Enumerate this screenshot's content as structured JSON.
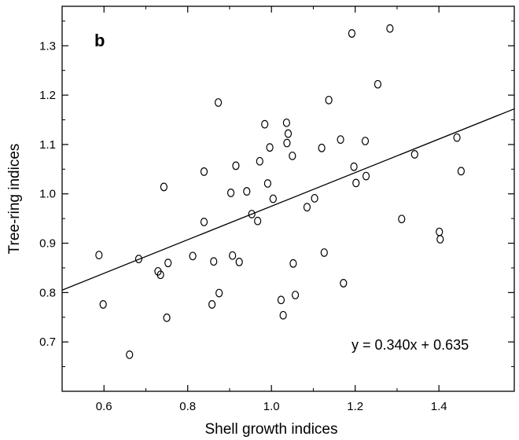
{
  "chart_data": {
    "type": "scatter",
    "panel_label": "b",
    "xlabel": "Shell growth indices",
    "ylabel": "Tree-ring indices",
    "xlim": [
      0.5,
      1.58
    ],
    "ylim": [
      0.6,
      1.38
    ],
    "xticks": [
      0.6,
      0.8,
      1.0,
      1.2,
      1.4
    ],
    "yticks": [
      0.7,
      0.8,
      0.9,
      1.0,
      1.1,
      1.2,
      1.3
    ],
    "xtick_labels": [
      "0.6",
      "0.8",
      "1.0",
      "1.2",
      "1.4"
    ],
    "ytick_labels": [
      "0.7",
      "0.8",
      "0.9",
      "1.0",
      "1.1",
      "1.2",
      "1.3"
    ],
    "grid": false,
    "legend": "none",
    "points": [
      {
        "x": 0.588,
        "y": 0.876
      },
      {
        "x": 0.598,
        "y": 0.776
      },
      {
        "x": 0.661,
        "y": 0.674
      },
      {
        "x": 0.683,
        "y": 0.868
      },
      {
        "x": 0.729,
        "y": 0.843
      },
      {
        "x": 0.735,
        "y": 0.836
      },
      {
        "x": 0.743,
        "y": 1.014
      },
      {
        "x": 0.75,
        "y": 0.749
      },
      {
        "x": 0.753,
        "y": 0.86
      },
      {
        "x": 0.812,
        "y": 0.874
      },
      {
        "x": 0.839,
        "y": 0.943
      },
      {
        "x": 0.839,
        "y": 1.045
      },
      {
        "x": 0.858,
        "y": 0.776
      },
      {
        "x": 0.862,
        "y": 0.863
      },
      {
        "x": 0.873,
        "y": 1.185
      },
      {
        "x": 0.875,
        "y": 0.799
      },
      {
        "x": 0.903,
        "y": 1.002
      },
      {
        "x": 0.907,
        "y": 0.875
      },
      {
        "x": 0.915,
        "y": 1.057
      },
      {
        "x": 0.923,
        "y": 0.862
      },
      {
        "x": 0.941,
        "y": 1.005
      },
      {
        "x": 0.953,
        "y": 0.959
      },
      {
        "x": 0.967,
        "y": 0.945
      },
      {
        "x": 0.972,
        "y": 1.066
      },
      {
        "x": 0.984,
        "y": 1.141
      },
      {
        "x": 0.991,
        "y": 1.021
      },
      {
        "x": 0.996,
        "y": 1.094
      },
      {
        "x": 1.004,
        "y": 0.99
      },
      {
        "x": 1.023,
        "y": 0.785
      },
      {
        "x": 1.028,
        "y": 0.754
      },
      {
        "x": 1.036,
        "y": 1.144
      },
      {
        "x": 1.037,
        "y": 1.103
      },
      {
        "x": 1.04,
        "y": 1.122
      },
      {
        "x": 1.05,
        "y": 1.077
      },
      {
        "x": 1.052,
        "y": 0.859
      },
      {
        "x": 1.057,
        "y": 0.795
      },
      {
        "x": 1.085,
        "y": 0.973
      },
      {
        "x": 1.103,
        "y": 0.991
      },
      {
        "x": 1.12,
        "y": 1.093
      },
      {
        "x": 1.126,
        "y": 0.881
      },
      {
        "x": 1.137,
        "y": 1.19
      },
      {
        "x": 1.165,
        "y": 1.11
      },
      {
        "x": 1.172,
        "y": 0.819
      },
      {
        "x": 1.192,
        "y": 1.325
      },
      {
        "x": 1.197,
        "y": 1.055
      },
      {
        "x": 1.202,
        "y": 1.022
      },
      {
        "x": 1.224,
        "y": 1.107
      },
      {
        "x": 1.226,
        "y": 1.036
      },
      {
        "x": 1.254,
        "y": 1.222
      },
      {
        "x": 1.283,
        "y": 1.335
      },
      {
        "x": 1.311,
        "y": 0.949
      },
      {
        "x": 1.342,
        "y": 1.08
      },
      {
        "x": 1.401,
        "y": 0.923
      },
      {
        "x": 1.403,
        "y": 0.908
      },
      {
        "x": 1.443,
        "y": 1.114
      },
      {
        "x": 1.453,
        "y": 1.046
      }
    ],
    "fit": {
      "slope": 0.34,
      "intercept": 0.635,
      "label": "y = 0.340x + 0.635"
    }
  }
}
